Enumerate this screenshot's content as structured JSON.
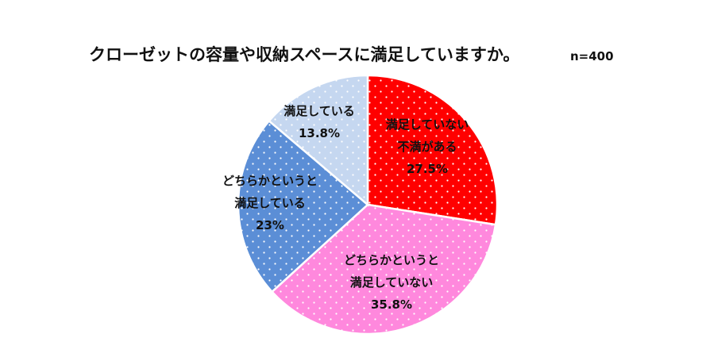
{
  "chart_data": {
    "type": "pie",
    "title": "クローゼットの容量や収納スペースに満足していますか。",
    "sample_size": "n=400",
    "slices": [
      {
        "label_lines": [
          "満足していない",
          "不満がある"
        ],
        "value": 27.5,
        "value_text": "27.5%",
        "color": "#ff0000"
      },
      {
        "label_lines": [
          "どちらかというと",
          "満足していない"
        ],
        "value": 35.8,
        "value_text": "35.8%",
        "color": "#ff88dd"
      },
      {
        "label_lines": [
          "どちらかというと",
          "満足している"
        ],
        "value": 23,
        "value_text": "23%",
        "color": "#5b8ed6"
      },
      {
        "label_lines": [
          "満足している"
        ],
        "value": 13.8,
        "value_text": "13.8%",
        "color": "#c5d7f0"
      }
    ],
    "start_angle": "12 o'clock",
    "direction": "clockwise",
    "legend": "none",
    "pattern": "white dots"
  }
}
